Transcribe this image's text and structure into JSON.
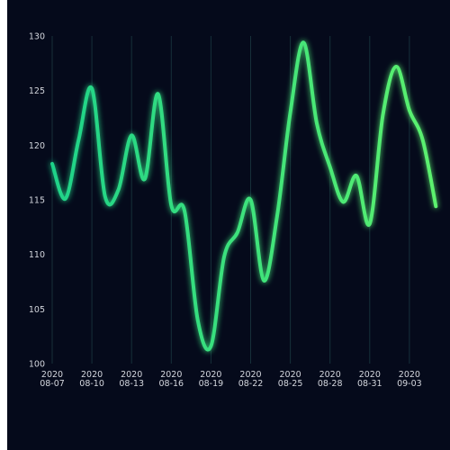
{
  "chart_data": {
    "type": "line",
    "title": "",
    "xlabel": "",
    "ylabel": "",
    "ylim": [
      100,
      130
    ],
    "y_ticks": [
      100,
      105,
      110,
      115,
      120,
      125,
      130
    ],
    "x_tick_labels": [
      {
        "date": "2020-08-07",
        "top": "2020",
        "bottom": "08-07"
      },
      {
        "date": "2020-08-10",
        "top": "2020",
        "bottom": "08-10"
      },
      {
        "date": "2020-08-13",
        "top": "2020",
        "bottom": "08-13"
      },
      {
        "date": "2020-08-16",
        "top": "2020",
        "bottom": "08-16"
      },
      {
        "date": "2020-08-19",
        "top": "2020",
        "bottom": "08-19"
      },
      {
        "date": "2020-08-22",
        "top": "2020",
        "bottom": "08-22"
      },
      {
        "date": "2020-08-25",
        "top": "2020",
        "bottom": "08-25"
      },
      {
        "date": "2020-08-28",
        "top": "2020",
        "bottom": "08-28"
      },
      {
        "date": "2020-08-31",
        "top": "2020",
        "bottom": "08-31"
      },
      {
        "date": "2020-09-03",
        "top": "2020",
        "bottom": "09-03"
      }
    ],
    "xlim": [
      "2020-08-07",
      "2020-09-05"
    ],
    "grid": {
      "vertical": true,
      "horizontal": false
    },
    "line_gradient": [
      "#1fd389",
      "#5cf16e"
    ],
    "series": [
      {
        "x": [
          "2020-08-07",
          "2020-08-08",
          "2020-08-09",
          "2020-08-10",
          "2020-08-11",
          "2020-08-12",
          "2020-08-13",
          "2020-08-14",
          "2020-08-15",
          "2020-08-16",
          "2020-08-17",
          "2020-08-18",
          "2020-08-19",
          "2020-08-20",
          "2020-08-21",
          "2020-08-22",
          "2020-08-23",
          "2020-08-24",
          "2020-08-25",
          "2020-08-26",
          "2020-08-27",
          "2020-08-28",
          "2020-08-29",
          "2020-08-30",
          "2020-08-31",
          "2020-09-01",
          "2020-09-02",
          "2020-09-03",
          "2020-09-04",
          "2020-09-05"
        ],
        "values": [
          118.3,
          115.1,
          120.5,
          125.2,
          115.3,
          115.9,
          120.9,
          116.9,
          124.7,
          114.5,
          114.0,
          104.0,
          101.6,
          109.8,
          112.0,
          115.0,
          107.6,
          113.5,
          123.0,
          129.4,
          122.0,
          118.0,
          114.8,
          117.2,
          112.8,
          122.8,
          127.2,
          123.2,
          120.5,
          114.4
        ]
      }
    ]
  }
}
